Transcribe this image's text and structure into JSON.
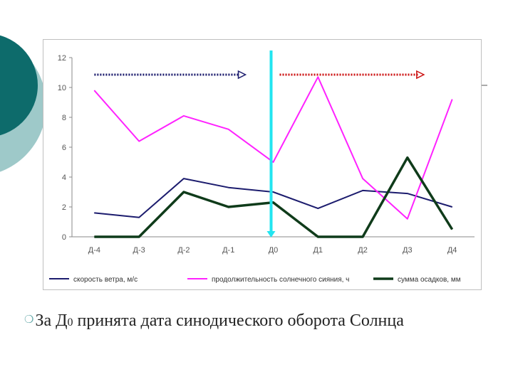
{
  "chart_data": {
    "type": "line",
    "categories": [
      "Д-4",
      "Д-3",
      "Д-2",
      "Д-1",
      "Д0",
      "Д1",
      "Д2",
      "Д3",
      "Д4"
    ],
    "ylim": [
      0,
      12
    ],
    "yticks": [
      "0",
      "2",
      "4",
      "6",
      "8",
      "10",
      "12"
    ],
    "grid": false,
    "legend_position": "bottom",
    "series": [
      {
        "name": "скорость ветра, м/с",
        "color": "#1c1c6e",
        "values": [
          1.6,
          1.3,
          3.9,
          3.3,
          3.0,
          1.9,
          3.1,
          2.9,
          2.0
        ]
      },
      {
        "name": "продолжительность солнечного сияния, ч",
        "color": "#ff22ff",
        "values": [
          9.8,
          6.4,
          8.1,
          7.2,
          5.0,
          10.7,
          3.9,
          1.2,
          9.2
        ]
      },
      {
        "name": "сумма осадков, мм",
        "color": "#0f3b1a",
        "values": [
          0,
          0,
          3.0,
          2.0,
          2.3,
          0,
          0,
          5.3,
          0.5
        ]
      }
    ],
    "marker_category": "Д0",
    "marker_color": "#22e5f0",
    "arrow_colors": {
      "left": "#1c1c6e",
      "right": "#cc1111"
    }
  },
  "caption": {
    "bullet": "❍",
    "text_before": "За Д",
    "subscript": "0",
    "text_after": " принята дата синодического оборота Солнца"
  },
  "colors": {
    "teal_dark": "#0d6b6b",
    "teal_light": "#9ec9c9"
  }
}
